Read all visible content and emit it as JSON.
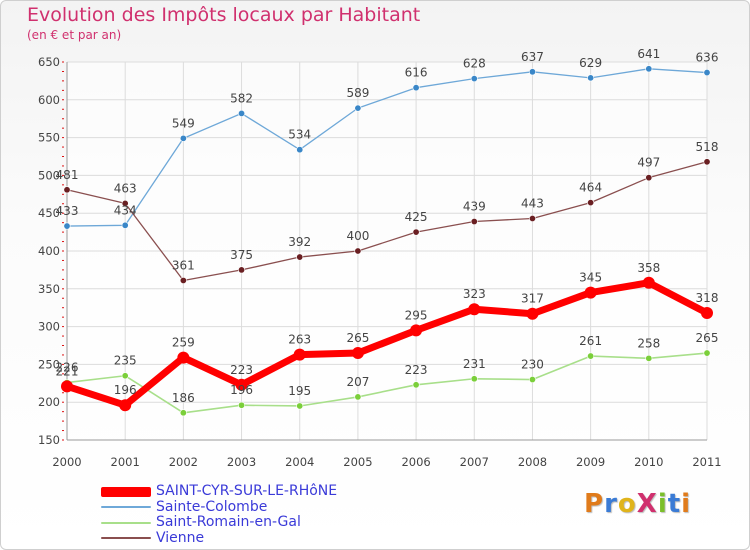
{
  "title": "Evolution des Impôts locaux par Habitant",
  "subtitle": "(en € et par an)",
  "logo": {
    "text": "ProXiti",
    "letter_colors": [
      "#e07b1b",
      "#3a7bd5",
      "#e0b41b",
      "#d0306e",
      "#7bbf2a",
      "#3a7bd5",
      "#e07b1b"
    ]
  },
  "chart_data": {
    "type": "line",
    "title": "Evolution des Impôts locaux par Habitant",
    "subtitle": "(en € et par an)",
    "xlabel": "",
    "ylabel": "",
    "x": [
      2000,
      2001,
      2002,
      2003,
      2004,
      2005,
      2006,
      2007,
      2008,
      2009,
      2010,
      2011
    ],
    "ylim": [
      150,
      650
    ],
    "yticks": [
      150,
      200,
      250,
      300,
      350,
      400,
      450,
      500,
      550,
      600,
      650
    ],
    "grid": true,
    "legend_position": "bottom-left",
    "series": [
      {
        "name": "SAINT-CYR-SUR-LE-RHôNE",
        "color": "#ff0000",
        "marker_color": "#ff0000",
        "width": 7,
        "marker_r": 6,
        "values": [
          221,
          196,
          259,
          223,
          263,
          265,
          295,
          323,
          317,
          345,
          358,
          318
        ]
      },
      {
        "name": "Sainte-Colombe",
        "color": "#6ea8d8",
        "marker_color": "#3a87c8",
        "width": 1.3,
        "marker_r": 3.2,
        "values": [
          433,
          434,
          549,
          582,
          534,
          589,
          616,
          628,
          637,
          629,
          641,
          636
        ]
      },
      {
        "name": "Saint-Romain-en-Gal",
        "color": "#a8df8a",
        "marker_color": "#7bcf3a",
        "width": 1.6,
        "marker_r": 3.2,
        "values": [
          226,
          235,
          186,
          196,
          195,
          207,
          223,
          231,
          230,
          261,
          258,
          265
        ]
      },
      {
        "name": "Vienne",
        "color": "#8a4f4f",
        "marker_color": "#6a1f22",
        "width": 1.3,
        "marker_r": 3.2,
        "values": [
          481,
          463,
          361,
          375,
          392,
          400,
          425,
          439,
          443,
          464,
          497,
          518
        ]
      }
    ]
  }
}
